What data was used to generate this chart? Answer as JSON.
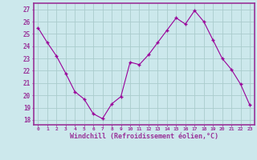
{
  "x": [
    0,
    1,
    2,
    3,
    4,
    5,
    6,
    7,
    8,
    9,
    10,
    11,
    12,
    13,
    14,
    15,
    16,
    17,
    18,
    19,
    20,
    21,
    22,
    23
  ],
  "y": [
    25.5,
    24.3,
    23.2,
    21.8,
    20.3,
    19.7,
    18.5,
    18.1,
    19.3,
    19.9,
    22.7,
    22.5,
    23.3,
    24.3,
    25.3,
    26.3,
    25.8,
    26.9,
    26.0,
    24.5,
    23.0,
    22.1,
    20.9,
    19.2
  ],
  "line_color": "#990099",
  "marker": "+",
  "bg_color": "#cce8ec",
  "grid_color": "#aacccc",
  "xlabel": "Windchill (Refroidissement éolien,°C)",
  "ylabel_ticks": [
    18,
    19,
    20,
    21,
    22,
    23,
    24,
    25,
    26,
    27
  ],
  "ylim": [
    17.6,
    27.5
  ],
  "xlim": [
    -0.5,
    23.5
  ],
  "border_color": "#993399",
  "tick_label_color": "#993399",
  "xlabel_color": "#993399"
}
